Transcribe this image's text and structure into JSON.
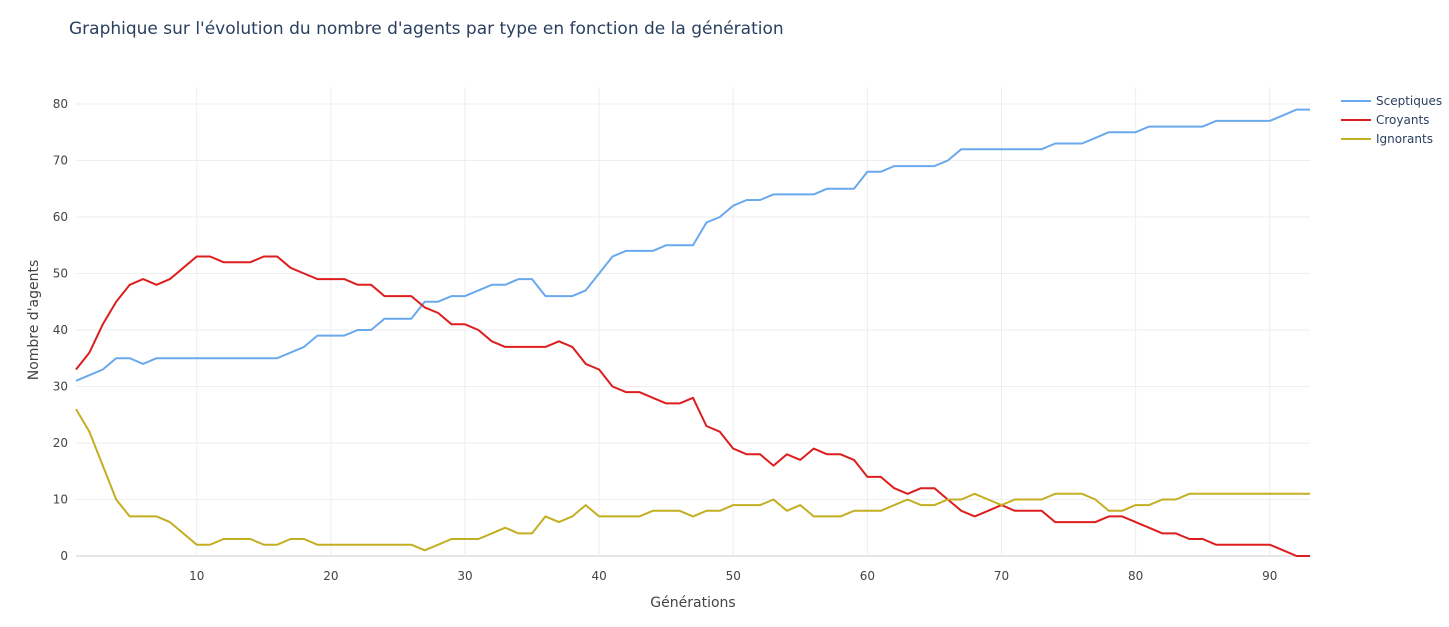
{
  "chart_data": {
    "type": "line",
    "title": "Graphique sur l'évolution du nombre d'agents par type en fonction de la génération",
    "xlabel": "Générations",
    "ylabel": "Nombre d'agents",
    "xlim": [
      1,
      93
    ],
    "ylim": [
      0,
      83
    ],
    "x_ticks": [
      10,
      20,
      30,
      40,
      50,
      60,
      70,
      80,
      90
    ],
    "y_ticks": [
      0,
      10,
      20,
      30,
      40,
      50,
      60,
      70,
      80
    ],
    "grid": true,
    "legend_position": "top-right",
    "x": [
      1,
      2,
      3,
      4,
      5,
      6,
      7,
      8,
      9,
      10,
      11,
      12,
      13,
      14,
      15,
      16,
      17,
      18,
      19,
      20,
      21,
      22,
      23,
      24,
      25,
      26,
      27,
      28,
      29,
      30,
      31,
      32,
      33,
      34,
      35,
      36,
      37,
      38,
      39,
      40,
      41,
      42,
      43,
      44,
      45,
      46,
      47,
      48,
      49,
      50,
      51,
      52,
      53,
      54,
      55,
      56,
      57,
      58,
      59,
      60,
      61,
      62,
      63,
      64,
      65,
      66,
      67,
      68,
      69,
      70,
      71,
      72,
      73,
      74,
      75,
      76,
      77,
      78,
      79,
      80,
      81,
      82,
      83,
      84,
      85,
      86,
      87,
      88,
      89,
      90,
      91,
      92,
      93
    ],
    "series": [
      {
        "name": "Sceptiques",
        "color": "#6aa9ee",
        "values": [
          31,
          32,
          33,
          35,
          35,
          34,
          35,
          35,
          35,
          35,
          35,
          35,
          35,
          35,
          35,
          35,
          36,
          37,
          39,
          39,
          39,
          40,
          40,
          42,
          42,
          42,
          45,
          45,
          46,
          46,
          47,
          48,
          48,
          49,
          49,
          46,
          46,
          46,
          47,
          50,
          53,
          54,
          54,
          54,
          55,
          55,
          55,
          59,
          60,
          62,
          63,
          63,
          64,
          64,
          64,
          64,
          65,
          65,
          65,
          68,
          68,
          69,
          69,
          69,
          69,
          70,
          72,
          72,
          72,
          72,
          72,
          72,
          72,
          73,
          73,
          73,
          74,
          75,
          75,
          75,
          76,
          76,
          76,
          76,
          76,
          77,
          77,
          77,
          77,
          77,
          78,
          79,
          79
        ]
      },
      {
        "name": "Croyants",
        "color": "#dd1e1e",
        "values": [
          33,
          36,
          41,
          45,
          48,
          49,
          48,
          49,
          51,
          53,
          53,
          52,
          52,
          52,
          53,
          53,
          51,
          50,
          49,
          49,
          49,
          48,
          48,
          46,
          46,
          46,
          44,
          43,
          41,
          41,
          40,
          38,
          37,
          37,
          37,
          37,
          38,
          37,
          34,
          33,
          30,
          29,
          29,
          28,
          27,
          27,
          28,
          23,
          22,
          19,
          18,
          18,
          16,
          18,
          17,
          19,
          18,
          18,
          17,
          14,
          14,
          12,
          11,
          12,
          12,
          10,
          8,
          7,
          8,
          9,
          8,
          8,
          8,
          6,
          6,
          6,
          6,
          7,
          7,
          6,
          5,
          4,
          4,
          3,
          3,
          2,
          2,
          2,
          2,
          2,
          1,
          0,
          0
        ]
      },
      {
        "name": "Ignorants",
        "color": "#c4ae22",
        "values": [
          26,
          22,
          16,
          10,
          7,
          7,
          7,
          6,
          4,
          2,
          2,
          3,
          3,
          3,
          2,
          2,
          3,
          3,
          2,
          2,
          2,
          2,
          2,
          2,
          2,
          2,
          1,
          2,
          3,
          3,
          3,
          4,
          5,
          4,
          4,
          7,
          6,
          7,
          9,
          7,
          7,
          7,
          7,
          8,
          8,
          8,
          7,
          8,
          8,
          9,
          9,
          9,
          10,
          8,
          9,
          7,
          7,
          7,
          8,
          8,
          8,
          9,
          10,
          9,
          9,
          10,
          10,
          11,
          10,
          9,
          10,
          10,
          10,
          11,
          11,
          11,
          10,
          8,
          8,
          9,
          9,
          10,
          10,
          11,
          11,
          11,
          11,
          11,
          11,
          11,
          11,
          11,
          11
        ]
      }
    ]
  }
}
